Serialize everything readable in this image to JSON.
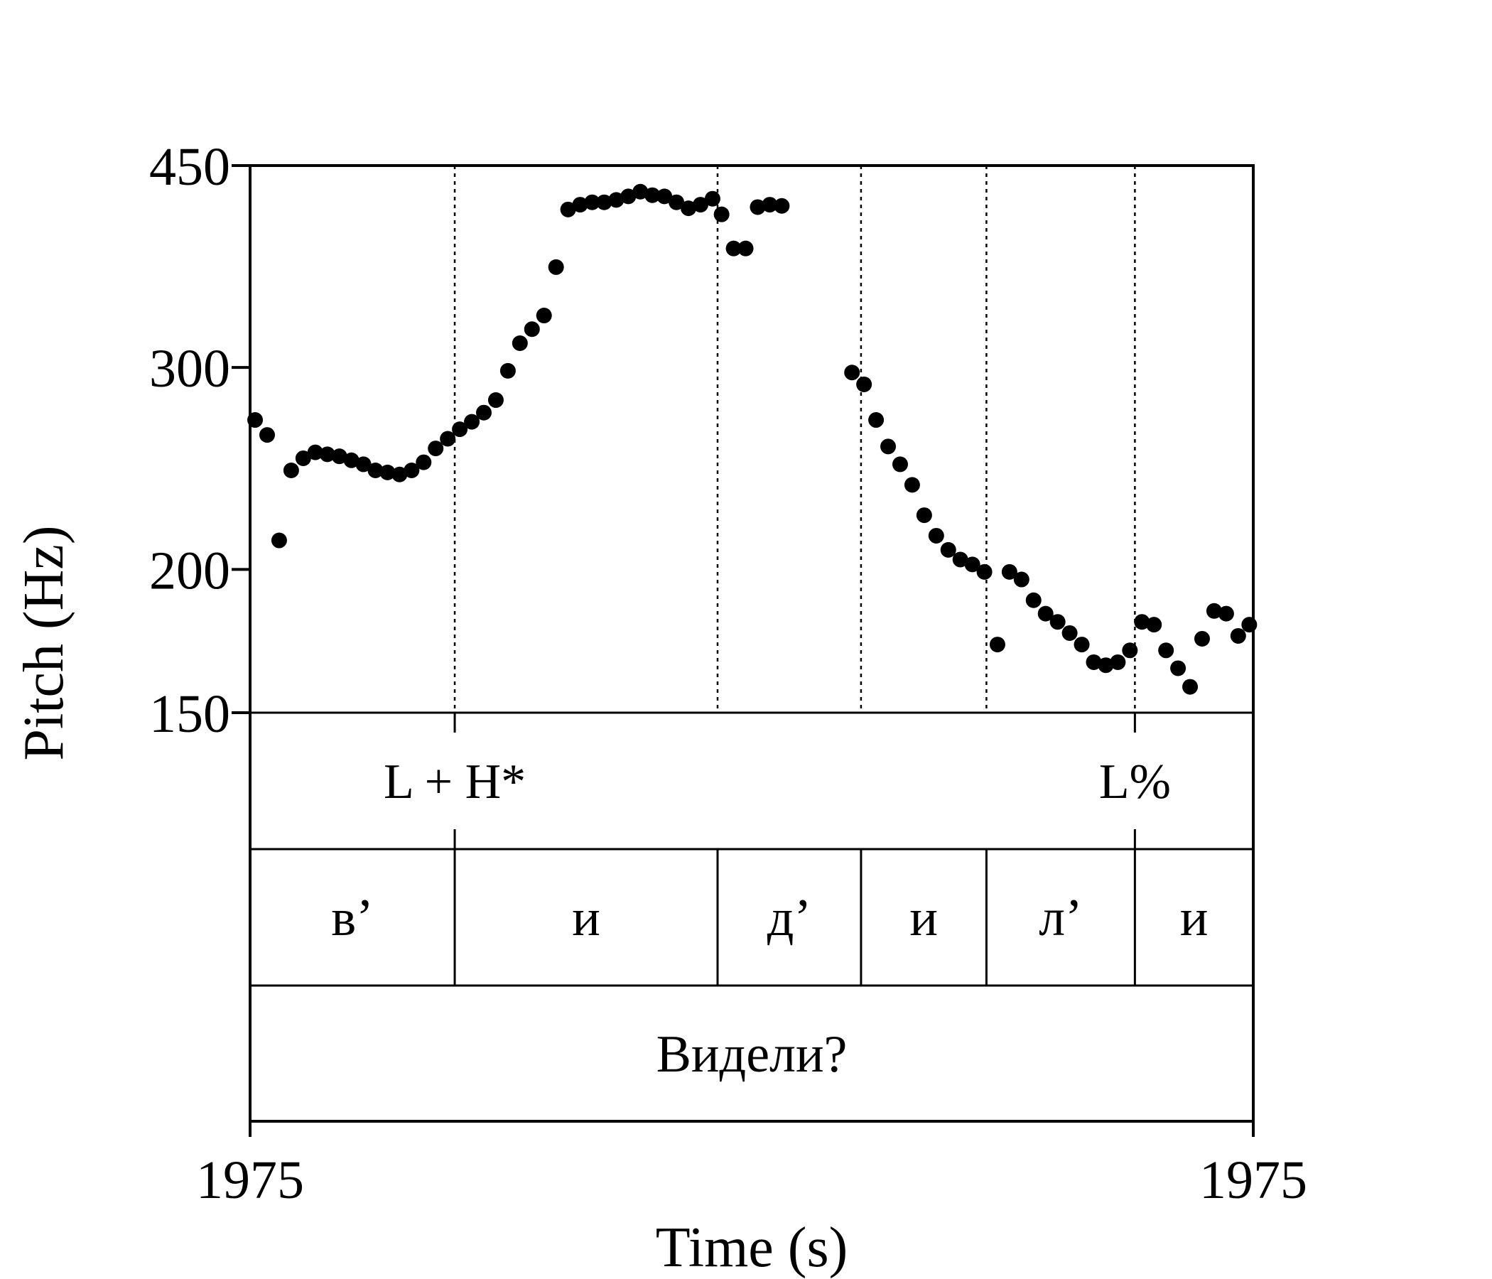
{
  "chart_data": {
    "type": "scatter",
    "xlabel": "Time (s)",
    "ylabel": "Pitch (Hz)",
    "x_tick_labels": [
      "1975",
      "1975"
    ],
    "y_ticks": [
      150,
      200,
      300,
      450
    ],
    "y_tick_labels": [
      "150",
      "200",
      "300",
      "450"
    ],
    "y_scale": "log",
    "ylim": [
      150,
      450
    ],
    "xlim": [
      0,
      1
    ],
    "boundaries": [
      0.204,
      0.466,
      0.609,
      0.734,
      0.882
    ],
    "tone_labels": [
      {
        "text": "L + H*",
        "x": 0.204
      },
      {
        "text": "L%",
        "x": 0.882
      }
    ],
    "segments": [
      {
        "text": "в’",
        "start": 0.0,
        "end": 0.204
      },
      {
        "text": "и",
        "start": 0.204,
        "end": 0.466
      },
      {
        "text": "д’",
        "start": 0.466,
        "end": 0.609
      },
      {
        "text": "и",
        "start": 0.609,
        "end": 0.734
      },
      {
        "text": "л’",
        "start": 0.734,
        "end": 0.882
      },
      {
        "text": "и",
        "start": 0.882,
        "end": 1.0
      }
    ],
    "word": "Видели?",
    "points": [
      [
        0.005,
        270
      ],
      [
        0.017,
        262
      ],
      [
        0.029,
        212
      ],
      [
        0.041,
        244
      ],
      [
        0.053,
        250
      ],
      [
        0.065,
        253
      ],
      [
        0.077,
        252
      ],
      [
        0.089,
        251
      ],
      [
        0.101,
        249
      ],
      [
        0.113,
        247
      ],
      [
        0.125,
        244
      ],
      [
        0.137,
        243
      ],
      [
        0.149,
        242
      ],
      [
        0.161,
        244
      ],
      [
        0.173,
        248
      ],
      [
        0.185,
        255
      ],
      [
        0.197,
        260
      ],
      [
        0.209,
        265
      ],
      [
        0.221,
        269
      ],
      [
        0.233,
        274
      ],
      [
        0.245,
        281
      ],
      [
        0.257,
        298
      ],
      [
        0.269,
        315
      ],
      [
        0.281,
        324
      ],
      [
        0.293,
        333
      ],
      [
        0.305,
        367
      ],
      [
        0.317,
        412
      ],
      [
        0.329,
        416
      ],
      [
        0.341,
        418
      ],
      [
        0.353,
        418
      ],
      [
        0.365,
        420
      ],
      [
        0.377,
        423
      ],
      [
        0.389,
        427
      ],
      [
        0.401,
        424
      ],
      [
        0.413,
        423
      ],
      [
        0.425,
        418
      ],
      [
        0.437,
        413
      ],
      [
        0.449,
        416
      ],
      [
        0.461,
        421
      ],
      [
        0.47,
        408
      ],
      [
        0.482,
        381
      ],
      [
        0.494,
        381
      ],
      [
        0.506,
        414
      ],
      [
        0.518,
        416
      ],
      [
        0.53,
        415
      ],
      [
        0.6,
        297
      ],
      [
        0.612,
        290
      ],
      [
        0.624,
        270
      ],
      [
        0.636,
        256
      ],
      [
        0.648,
        247
      ],
      [
        0.66,
        237
      ],
      [
        0.672,
        223
      ],
      [
        0.684,
        214
      ],
      [
        0.696,
        208
      ],
      [
        0.708,
        204
      ],
      [
        0.72,
        202
      ],
      [
        0.732,
        199
      ],
      [
        0.745,
        172
      ],
      [
        0.757,
        199
      ],
      [
        0.769,
        196
      ],
      [
        0.781,
        188
      ],
      [
        0.793,
        183
      ],
      [
        0.805,
        180
      ],
      [
        0.817,
        176
      ],
      [
        0.829,
        172
      ],
      [
        0.841,
        166
      ],
      [
        0.853,
        165
      ],
      [
        0.865,
        166
      ],
      [
        0.877,
        170
      ],
      [
        0.889,
        180
      ],
      [
        0.901,
        179
      ],
      [
        0.913,
        170
      ],
      [
        0.925,
        164
      ],
      [
        0.937,
        158
      ],
      [
        0.949,
        174
      ],
      [
        0.961,
        184
      ],
      [
        0.973,
        183
      ],
      [
        0.985,
        175
      ],
      [
        0.996,
        179
      ]
    ]
  }
}
